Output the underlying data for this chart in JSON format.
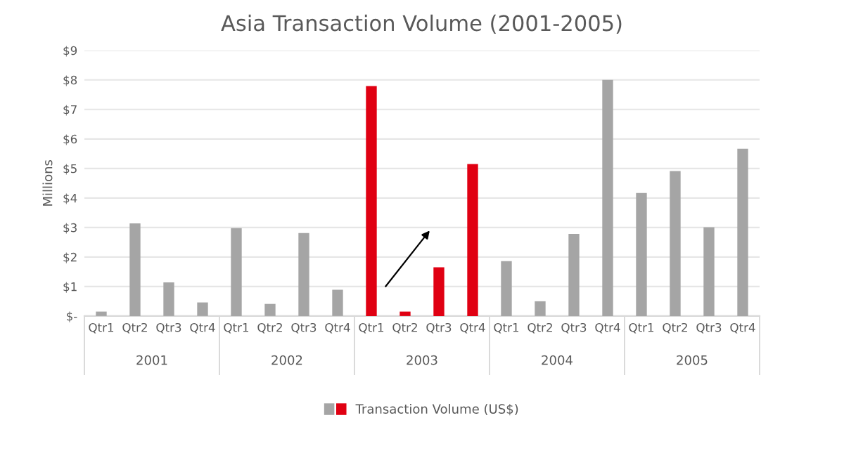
{
  "chart_data": {
    "type": "bar",
    "title": "Asia Transaction Volume (2001-2005)",
    "ylabel": "Millions",
    "categories": [
      "Qtr1",
      "Qtr2",
      "Qtr3",
      "Qtr4",
      "Qtr1",
      "Qtr2",
      "Qtr3",
      "Qtr4",
      "Qtr1",
      "Qtr2",
      "Qtr3",
      "Qtr4",
      "Qtr1",
      "Qtr2",
      "Qtr3",
      "Qtr4",
      "Qtr1",
      "Qtr2",
      "Qtr3",
      "Qtr4"
    ],
    "series": [
      {
        "name": "Transaction Volume (US$)",
        "values": [
          0.15,
          3.14,
          1.14,
          0.46,
          2.98,
          0.41,
          2.81,
          0.89,
          7.79,
          0.15,
          1.65,
          5.15,
          1.86,
          0.5,
          2.78,
          8.0,
          4.17,
          4.91,
          3.01,
          5.67
        ],
        "colors": [
          "#a5a5a5",
          "#a5a5a5",
          "#a5a5a5",
          "#a5a5a5",
          "#a5a5a5",
          "#a5a5a5",
          "#a5a5a5",
          "#a5a5a5",
          "#e00012",
          "#e00012",
          "#e00012",
          "#e00012",
          "#a5a5a5",
          "#a5a5a5",
          "#a5a5a5",
          "#a5a5a5",
          "#a5a5a5",
          "#a5a5a5",
          "#a5a5a5",
          "#a5a5a5"
        ]
      }
    ],
    "annotations": [
      "2001",
      "2002",
      "2003",
      "2004",
      "2005"
    ],
    "ylim": [
      0,
      9
    ],
    "yticks": [
      {
        "value": 0,
        "label": "$-"
      },
      {
        "value": 1,
        "label": "$1"
      },
      {
        "value": 2,
        "label": "$2"
      },
      {
        "value": 3,
        "label": "$3"
      },
      {
        "value": 4,
        "label": "$4"
      },
      {
        "value": 5,
        "label": "$5"
      },
      {
        "value": 6,
        "label": "$6"
      },
      {
        "value": 7,
        "label": "$7"
      },
      {
        "value": 8,
        "label": "$8"
      },
      {
        "value": 9,
        "label": "$9"
      }
    ],
    "grid": "y",
    "legend": "bottom"
  }
}
